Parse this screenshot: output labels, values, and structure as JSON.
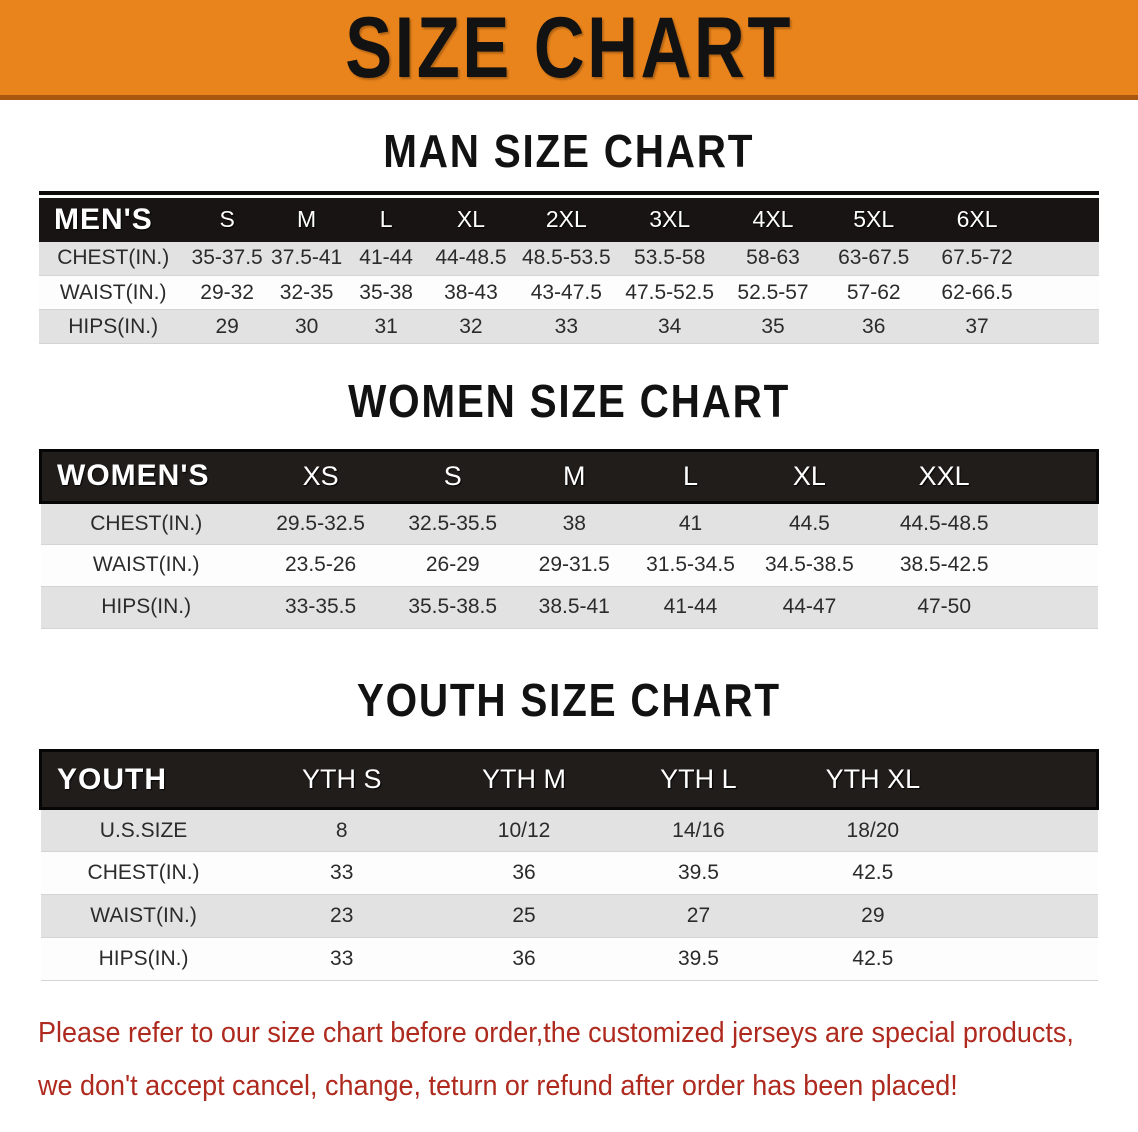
{
  "banner": {
    "title": "SIZE CHART"
  },
  "colors": {
    "banner_orange": "#E9831B",
    "banner_edge": "#A9560E",
    "header_bar": "#171413",
    "header_bar_inner": "#211D1B",
    "header_bar_border": "#060606",
    "row_gray": "#E2E2E2",
    "row_white": "#FDFDFD",
    "footer_red": "#AF2A1E",
    "title_black": "#121212",
    "header_text": "#FFFFFF",
    "cell_text": "#2B2B2B"
  },
  "sections": [
    {
      "id": "men",
      "title": "MAN SIZE CHART",
      "table": {
        "label": "MEN'S",
        "columns": [
          "S",
          "M",
          "L",
          "XL",
          "2XL",
          "3XL",
          "4XL",
          "5XL",
          "6XL"
        ],
        "rows": [
          {
            "label": "CHEST(IN.)",
            "values": [
              "35-37.5",
              "37.5-41",
              "41-44",
              "44-48.5",
              "48.5-53.5",
              "53.5-58",
              "58-63",
              "63-67.5",
              "67.5-72"
            ]
          },
          {
            "label": "WAIST(IN.)",
            "values": [
              "29-32",
              "32-35",
              "35-38",
              "38-43",
              "43-47.5",
              "47.5-52.5",
              "52.5-57",
              "57-62",
              "62-66.5"
            ]
          },
          {
            "label": "HIPS(IN.)",
            "values": [
              "29",
              "30",
              "31",
              "32",
              "33",
              "34",
              "35",
              "36",
              "37"
            ]
          }
        ]
      }
    },
    {
      "id": "women",
      "title": "WOMEN SIZE CHART",
      "table": {
        "label": "WOMEN'S",
        "columns": [
          "XS",
          "S",
          "M",
          "L",
          "XL",
          "XXL"
        ],
        "rows": [
          {
            "label": "CHEST(IN.)",
            "values": [
              "29.5-32.5",
              "32.5-35.5",
              "38",
              "41",
              "44.5",
              "44.5-48.5"
            ]
          },
          {
            "label": "WAIST(IN.)",
            "values": [
              "23.5-26",
              "26-29",
              "29-31.5",
              "31.5-34.5",
              "34.5-38.5",
              "38.5-42.5"
            ]
          },
          {
            "label": "HIPS(IN.)",
            "values": [
              "33-35.5",
              "35.5-38.5",
              "38.5-41",
              "41-44",
              "44-47",
              "47-50"
            ]
          }
        ]
      }
    },
    {
      "id": "youth",
      "title": "YOUTH SIZE CHART",
      "table": {
        "label": "YOUTH",
        "columns": [
          "YTH S",
          "YTH M",
          "YTH L",
          "YTH XL"
        ],
        "rows": [
          {
            "label": "U.S.SIZE",
            "values": [
              "8",
              "10/12",
              "14/16",
              "18/20"
            ]
          },
          {
            "label": "CHEST(IN.)",
            "values": [
              "33",
              "36",
              "39.5",
              "42.5"
            ]
          },
          {
            "label": "WAIST(IN.)",
            "values": [
              "23",
              "25",
              "27",
              "29"
            ]
          },
          {
            "label": "HIPS(IN.)",
            "values": [
              "33",
              "36",
              "39.5",
              "42.5"
            ]
          }
        ]
      }
    }
  ],
  "footer": {
    "line1": "Please refer to our size chart before order,the customized jerseys are special products,",
    "line2": "we don't accept cancel, change, teturn or refund after order has been placed!"
  }
}
